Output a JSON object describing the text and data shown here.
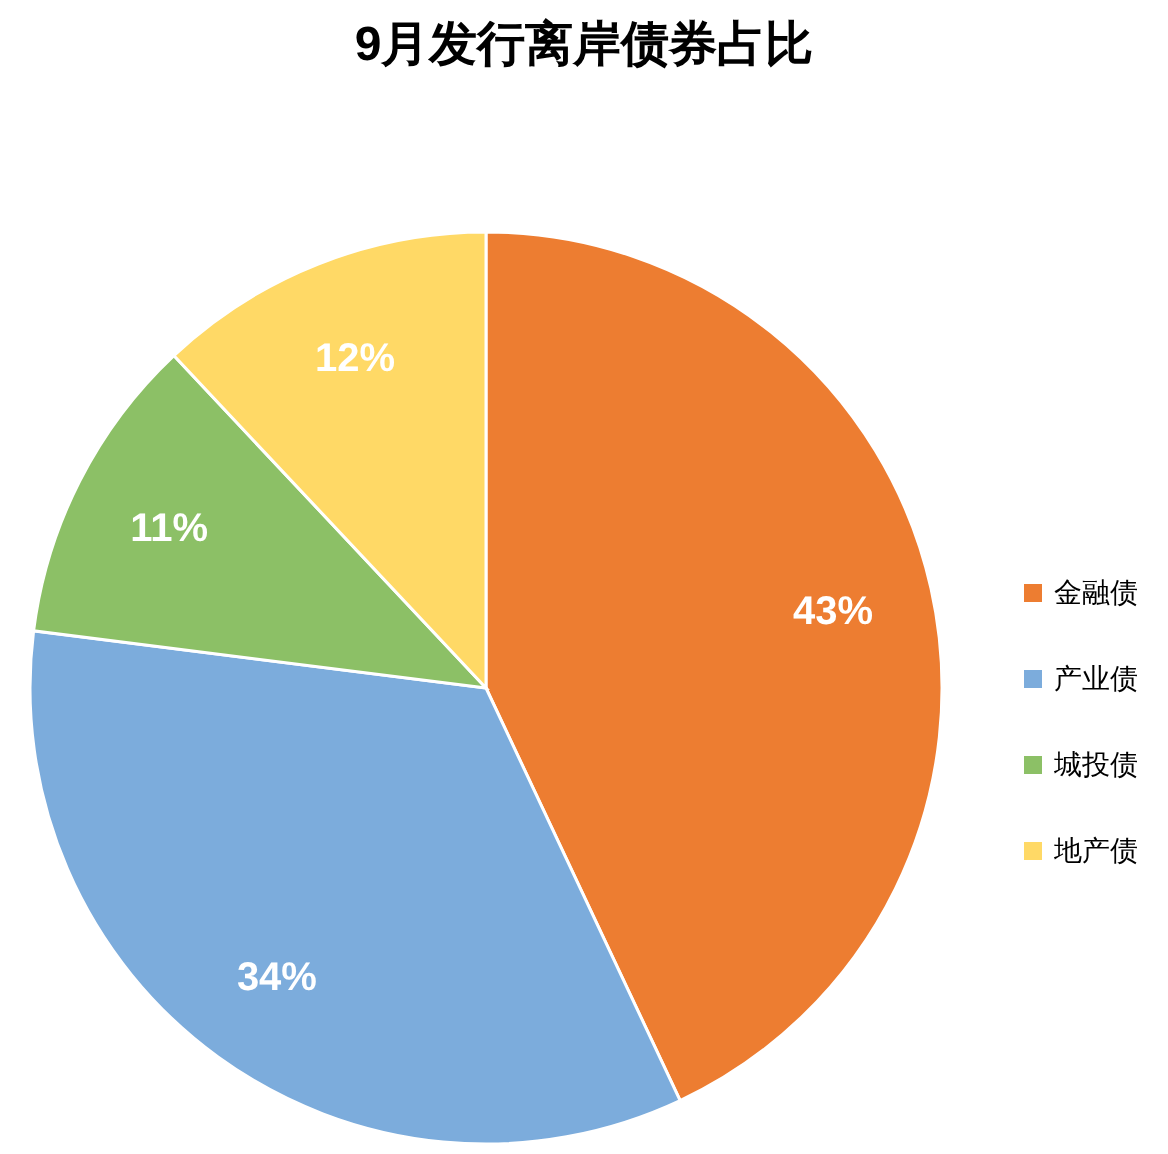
{
  "chart_data": {
    "type": "pie",
    "title": "9月发行离岸债券占比",
    "categories": [
      "金融债",
      "产业债",
      "城投债",
      "地产债"
    ],
    "values": [
      43,
      34,
      11,
      12
    ],
    "colors": [
      "#ed7d31",
      "#7cacdc",
      "#8cc066",
      "#ffd966"
    ],
    "value_labels": [
      "43%",
      "34%",
      "11%",
      "12%"
    ],
    "legend": "right"
  }
}
